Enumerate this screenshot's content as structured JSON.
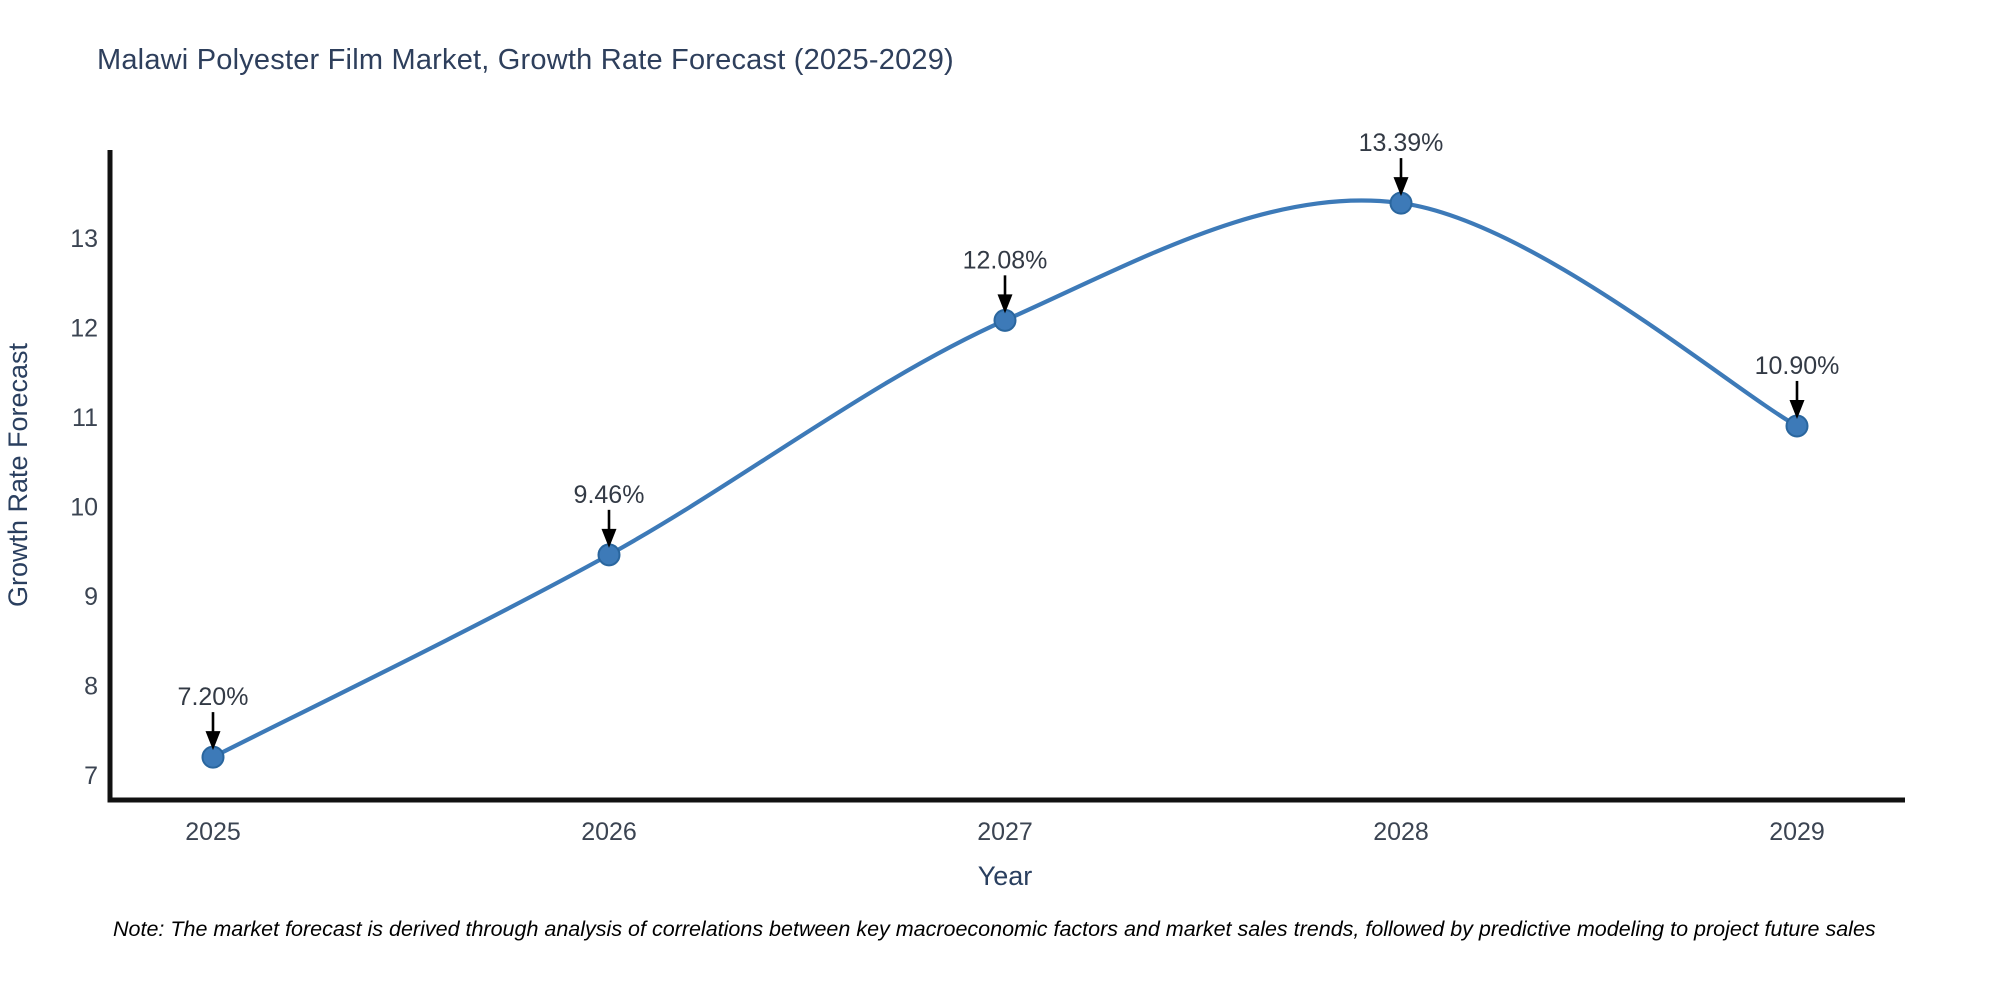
{
  "title": "Malawi Polyester Film Market, Growth Rate Forecast (2025-2029)",
  "chart_data": {
    "type": "line",
    "x": [
      2025,
      2026,
      2027,
      2028,
      2029
    ],
    "xticks": [
      "2025",
      "2026",
      "2027",
      "2028",
      "2029"
    ],
    "yticks": [
      7,
      8,
      9,
      10,
      11,
      12,
      13
    ],
    "series": [
      {
        "name": "Growth Rate Forecast",
        "values": [
          7.2,
          9.46,
          12.08,
          13.39,
          10.9
        ]
      }
    ],
    "annotations": [
      "7.20%",
      "9.46%",
      "12.08%",
      "13.39%",
      "10.90%"
    ],
    "title": "Malawi Polyester Film Market, Growth Rate Forecast (2025-2029)",
    "xlabel": "Year",
    "ylabel": "Growth Rate Forecast",
    "ylim": [
      6.7,
      13.9
    ],
    "grid": false,
    "legend": "none",
    "smooth": true,
    "colors": {
      "line": "#3d7ab8",
      "marker_fill": "#3d7ab8",
      "marker_edge": "#2a669e",
      "arrow": "#000000",
      "axis_spine": "#111111",
      "tick_text": "#3b4452",
      "title_text": "#2e3f5c"
    }
  },
  "note": {
    "text": "Note: The market forecast is derived through analysis of correlations between key macroeconomic factors and market sales trends, followed by predictive modeling to project future sales"
  }
}
